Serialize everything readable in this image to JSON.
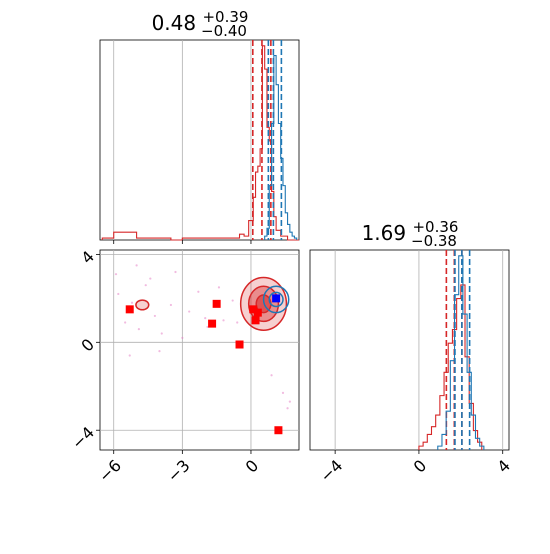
{
  "chart_data": [
    {
      "type": "histogram",
      "title_main": "0.48",
      "title_sup": "+0.39",
      "title_sub": "−0.40",
      "xlim": [
        -6.6,
        2.1
      ],
      "xticks": [
        "−6",
        "−3",
        "0"
      ],
      "x_tick_values": [
        -6,
        -3,
        0
      ],
      "grid": true,
      "series": [
        {
          "color": "#d62728",
          "bin_edges": [
            -6.5,
            -6.0,
            -5.5,
            -5.0,
            -4.5,
            -4.0,
            -3.5,
            -3.0,
            -2.5,
            -2.0,
            -1.5,
            -1.0,
            -0.5,
            -0.3,
            -0.1,
            0.1,
            0.2,
            0.3,
            0.4,
            0.5,
            0.6,
            0.7,
            0.8,
            0.9,
            1.0,
            1.1,
            1.3,
            1.6,
            2.1
          ],
          "counts": [
            1,
            4,
            4,
            1,
            1,
            1,
            0,
            1,
            1,
            1,
            1,
            1,
            3,
            2,
            10,
            22,
            35,
            38,
            47,
            100,
            88,
            58,
            51,
            25,
            12,
            5,
            2,
            0
          ],
          "quantiles": [
            0.08,
            0.48,
            0.87
          ]
        },
        {
          "color": "#1f77b4",
          "bin_edges": [
            0.6,
            0.7,
            0.8,
            0.9,
            1.0,
            1.1,
            1.2,
            1.3,
            1.4,
            1.5,
            1.6,
            1.7,
            1.8,
            1.9,
            2.0
          ],
          "counts": [
            2,
            6,
            28,
            60,
            95,
            80,
            60,
            42,
            28,
            14,
            8,
            4,
            2,
            1
          ],
          "quantiles": [
            0.76,
            0.98,
            1.33
          ]
        }
      ]
    },
    {
      "type": "scatter",
      "xlim": [
        -6.6,
        2.1
      ],
      "ylim": [
        -4.9,
        4.2
      ],
      "xticks": [
        "−6",
        "−3",
        "0"
      ],
      "x_tick_values": [
        -6,
        -3,
        0
      ],
      "yticks": [
        "4",
        "0",
        "−4"
      ],
      "y_tick_values": [
        4,
        0,
        -4
      ],
      "grid": true,
      "series": [
        {
          "name": "",
          "color": "#ff0000",
          "marker": "square",
          "x": [
            -5.3,
            -1.5,
            -1.7,
            -0.5,
            0.1,
            0.3,
            0.2,
            1.2
          ],
          "y": [
            1.5,
            1.75,
            0.85,
            -0.1,
            1.5,
            1.35,
            1.0,
            -4.0
          ]
        },
        {
          "name": "",
          "color": "#0000ff",
          "marker": "square",
          "x": [
            1.1
          ],
          "y": [
            2.0
          ]
        }
      ],
      "contours": [
        {
          "color": "#d62728",
          "center": [
            0.55,
            1.75
          ],
          "radii": [
            [
              1.0,
              1.2
            ],
            [
              0.65,
              0.8
            ],
            [
              0.32,
              0.4
            ]
          ]
        },
        {
          "color": "#d62728",
          "center": [
            -4.75,
            1.7
          ],
          "radii": [
            [
              0.28,
              0.22
            ]
          ]
        },
        {
          "color": "#1f77b4",
          "center": [
            1.1,
            1.95
          ],
          "radii": [
            [
              0.55,
              0.6
            ],
            [
              0.3,
              0.32
            ]
          ]
        }
      ],
      "background_points": {
        "color": "#e377c2",
        "x": [
          -5.8,
          -5.5,
          -5.2,
          -4.9,
          -4.6,
          -4.2,
          -3.9,
          -3.5,
          -3.0,
          -2.7,
          -2.3,
          -1.9,
          -1.2,
          -0.8,
          -5.9,
          -5.0,
          -4.4,
          -3.3,
          -2.0,
          -1.4,
          -0.6,
          0.9,
          1.4,
          1.6,
          1.7,
          -4.0,
          -5.3
        ],
        "y": [
          2.2,
          0.9,
          1.8,
          0.6,
          2.6,
          1.2,
          0.4,
          1.7,
          0.2,
          1.4,
          2.3,
          0.7,
          1.0,
          1.9,
          3.1,
          3.5,
          2.9,
          3.2,
          1.1,
          2.5,
          0.9,
          -1.5,
          -2.3,
          -3.0,
          -2.7,
          -0.4,
          -0.6
        ]
      }
    },
    {
      "type": "histogram",
      "title_main": "1.69",
      "title_sup": "+0.36",
      "title_sub": "−0.38",
      "xlim": [
        -5.2,
        4.3
      ],
      "xticks": [
        "−4",
        "0",
        "4"
      ],
      "x_tick_values": [
        -4,
        0,
        4
      ],
      "grid": true,
      "series": [
        {
          "color": "#d62728",
          "bin_edges": [
            0.0,
            0.2,
            0.4,
            0.6,
            0.8,
            1.0,
            1.2,
            1.4,
            1.6,
            1.8,
            2.0,
            2.2,
            2.4,
            2.6,
            2.8,
            3.0
          ],
          "counts": [
            2,
            4,
            8,
            12,
            18,
            28,
            40,
            55,
            62,
            78,
            85,
            48,
            24,
            10,
            4
          ],
          "quantiles": [
            1.31,
            1.69,
            2.05
          ]
        },
        {
          "color": "#1f77b4",
          "bin_edges": [
            0.9,
            1.1,
            1.3,
            1.5,
            1.7,
            1.9,
            2.1,
            2.3,
            2.5,
            2.7,
            2.9,
            3.1
          ],
          "counts": [
            2,
            8,
            20,
            46,
            80,
            100,
            70,
            40,
            18,
            6,
            2
          ],
          "quantiles": [
            1.72,
            2.05,
            2.42
          ]
        }
      ]
    }
  ]
}
